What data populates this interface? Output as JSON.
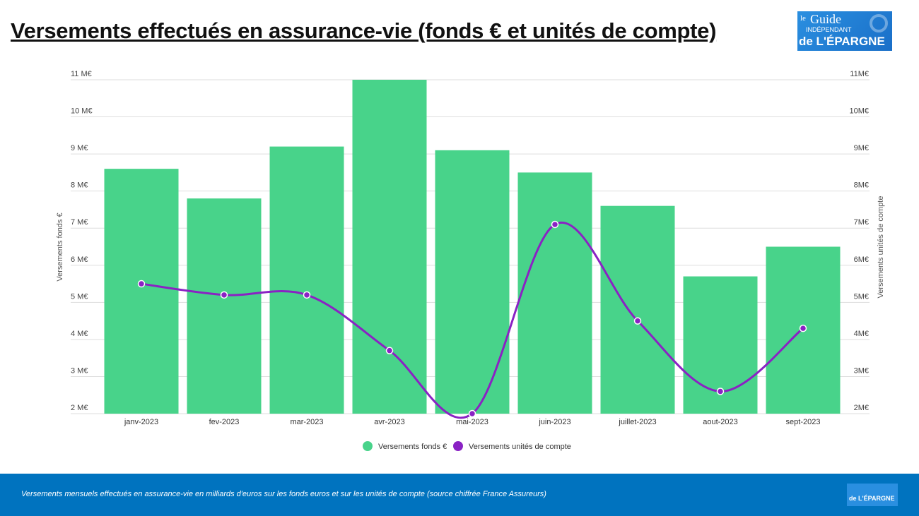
{
  "title": "Versements effectués en assurance-vie (fonds € et unités de compte)",
  "logo": {
    "line1": "le",
    "line2": "Guide",
    "line3": "INDÉPENDANT",
    "line4": "de L'ÉPARGNE"
  },
  "footer": {
    "caption": "Versements mensuels effectués en assurance-vie en milliards d'euros sur les fonds euros et sur les unités de compte (source chiffrée France Assureurs)"
  },
  "chart_data": {
    "type": "bar",
    "categories": [
      "janv-2023",
      "fev-2023",
      "mar-2023",
      "avr-2023",
      "mai-2023",
      "juin-2023",
      "juillet-2023",
      "aout-2023",
      "sept-2023"
    ],
    "series": [
      {
        "name": "Versements fonds €",
        "type": "bar",
        "axis": "left",
        "color": "#48d38a",
        "values": [
          8.6,
          7.8,
          9.2,
          11.0,
          9.1,
          8.5,
          7.6,
          5.7,
          6.5
        ]
      },
      {
        "name": "Versements unités de compte",
        "type": "line",
        "axis": "right",
        "color": "#8a22c4",
        "values": [
          5.5,
          5.2,
          5.2,
          3.7,
          2.0,
          7.1,
          4.5,
          2.6,
          4.3
        ]
      }
    ],
    "ylabel": "Versements fonds €",
    "ylabel_right": "Versements unités de compte",
    "ylim": [
      2,
      11
    ],
    "ylim_right": [
      2,
      11
    ],
    "yticks": [
      "2 M€",
      "3 M€",
      "4 M€",
      "5 M€",
      "6 M€",
      "7 M€",
      "8 M€",
      "9 M€",
      "10 M€",
      "11 M€"
    ],
    "yticks_right": [
      "2M€",
      "3M€",
      "4M€",
      "5M€",
      "6M€",
      "7M€",
      "8M€",
      "9M€",
      "10M€",
      "11M€"
    ],
    "grid": true,
    "legend": "bottom"
  }
}
